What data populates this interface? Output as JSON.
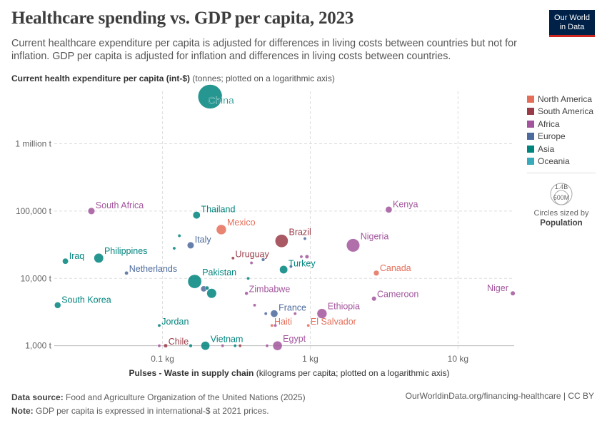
{
  "header": {
    "title": "Healthcare spending vs. GDP per capita, 2023",
    "subtitle": "Current healthcare expenditure per capita is adjusted for differences in living costs between countries but not for inflation. GDP per capita is adjusted for inflation and differences in living costs between countries.",
    "logo_line1": "Our World",
    "logo_line2": "in Data"
  },
  "axes": {
    "y_title": "Current health expenditure per capita (int-$)",
    "y_note": "(tonnes; plotted on a logarithmic axis)",
    "x_title": "Pulses - Waste in supply chain",
    "x_note": "(kilograms per capita; plotted on a logarithmic axis)"
  },
  "legend": {
    "regions": [
      {
        "name": "North America",
        "color": "#e56e5a"
      },
      {
        "name": "South America",
        "color": "#9a3c48"
      },
      {
        "name": "Africa",
        "color": "#a2559c"
      },
      {
        "name": "Europe",
        "color": "#4c6a9c"
      },
      {
        "name": "Asia",
        "color": "#00847e"
      },
      {
        "name": "Oceania",
        "color": "#38aaba"
      }
    ],
    "size_max_label": "1.4B",
    "size_min_label": "600M",
    "size_note": "Circles sized by",
    "size_variable": "Population"
  },
  "chart_data": {
    "type": "scatter",
    "x_scale": "log",
    "y_scale": "log",
    "xlim": [
      0.0185,
      24
    ],
    "ylim": [
      900,
      6000000
    ],
    "x_ticks": [
      {
        "value": 0.1,
        "label": "0.1 kg"
      },
      {
        "value": 1,
        "label": "1 kg"
      },
      {
        "value": 10,
        "label": "10 kg"
      }
    ],
    "y_ticks": [
      {
        "value": 1000,
        "label": "1,000 t"
      },
      {
        "value": 10000,
        "label": "10,000 t"
      },
      {
        "value": 100000,
        "label": "100,000 t"
      },
      {
        "value": 1000000,
        "label": "1 million t"
      }
    ],
    "points": [
      {
        "name": "China",
        "region": "Asia",
        "x": 0.21,
        "y": 5000000,
        "pop": 1400,
        "label": "China",
        "label_pos": "bottom-right"
      },
      {
        "name": "South Africa",
        "region": "Africa",
        "x": 0.033,
        "y": 100000,
        "pop": 60,
        "label": "South Africa",
        "label_pos": "right"
      },
      {
        "name": "Thailand",
        "region": "Asia",
        "x": 0.17,
        "y": 87000,
        "pop": 70,
        "label": "Thailand",
        "label_pos": "right"
      },
      {
        "name": "Mexico",
        "region": "North America",
        "x": 0.25,
        "y": 53000,
        "pop": 128,
        "label": "Mexico",
        "label_pos": "right"
      },
      {
        "name": "Italy",
        "region": "Europe",
        "x": 0.155,
        "y": 31000,
        "pop": 59,
        "label": "Italy",
        "label_pos": "right"
      },
      {
        "name": "Brazil",
        "region": "South America",
        "x": 0.64,
        "y": 36000,
        "pop": 216,
        "label": "Brazil",
        "label_pos": "right"
      },
      {
        "name": "Nigeria",
        "region": "Africa",
        "x": 1.95,
        "y": 31000,
        "pop": 223,
        "label": "Nigeria",
        "label_pos": "right"
      },
      {
        "name": "Kenya",
        "region": "Africa",
        "x": 3.4,
        "y": 105000,
        "pop": 55,
        "label": "Kenya",
        "label_pos": "right"
      },
      {
        "name": "Iraq",
        "region": "Asia",
        "x": 0.022,
        "y": 18000,
        "pop": 45,
        "label": "Iraq",
        "label_pos": "right"
      },
      {
        "name": "Philippines",
        "region": "Asia",
        "x": 0.037,
        "y": 20000,
        "pop": 117,
        "label": "Philippines",
        "label_pos": "right"
      },
      {
        "name": "Uruguay",
        "region": "South America",
        "x": 0.3,
        "y": 20000,
        "pop": 3,
        "label": "Uruguay",
        "label_pos": "right"
      },
      {
        "name": "Netherlands",
        "region": "Europe",
        "x": 0.057,
        "y": 12000,
        "pop": 18,
        "label": "Netherlands",
        "label_pos": "right"
      },
      {
        "name": "Turkey",
        "region": "Asia",
        "x": 0.66,
        "y": 13500,
        "pop": 85,
        "label": "Turkey",
        "label_pos": "right"
      },
      {
        "name": "Canada",
        "region": "North America",
        "x": 2.8,
        "y": 12000,
        "pop": 39,
        "label": "Canada",
        "label_pos": "right"
      },
      {
        "name": "Pakistan",
        "region": "Asia",
        "x": 0.165,
        "y": 9000,
        "pop": 240,
        "label": "Pakistan",
        "label_pos": "right"
      },
      {
        "name": "Zimbabwe",
        "region": "Africa",
        "x": 0.37,
        "y": 6000,
        "pop": 16,
        "label": "Zimbabwe",
        "label_pos": "right"
      },
      {
        "name": "Niger",
        "region": "Africa",
        "x": 23.5,
        "y": 6000,
        "pop": 27,
        "label": "Niger",
        "label_pos": "left"
      },
      {
        "name": "Cameroon",
        "region": "Africa",
        "x": 2.7,
        "y": 5000,
        "pop": 28,
        "label": "Cameroon",
        "label_pos": "right"
      },
      {
        "name": "South Korea",
        "region": "Asia",
        "x": 0.0195,
        "y": 4000,
        "pop": 52,
        "label": "South Korea",
        "label_pos": "right"
      },
      {
        "name": "France",
        "region": "Europe",
        "x": 0.57,
        "y": 3000,
        "pop": 68,
        "label": "France",
        "label_pos": "right"
      },
      {
        "name": "Ethiopia",
        "region": "Africa",
        "x": 1.2,
        "y": 3000,
        "pop": 126,
        "label": "Ethiopia",
        "label_pos": "right"
      },
      {
        "name": "Haiti",
        "region": "North America",
        "x": 0.55,
        "y": 2000,
        "pop": 12,
        "label": "Haiti",
        "label_pos": "right"
      },
      {
        "name": "El Salvador",
        "region": "North America",
        "x": 0.97,
        "y": 2000,
        "pop": 6,
        "label": "El Salvador",
        "label_pos": "right"
      },
      {
        "name": "Jordan",
        "region": "Asia",
        "x": 0.095,
        "y": 2000,
        "pop": 11,
        "label": "Jordan",
        "label_pos": "right"
      },
      {
        "name": "Chile",
        "region": "South America",
        "x": 0.105,
        "y": 1000,
        "pop": 20,
        "label": "Chile",
        "label_pos": "right"
      },
      {
        "name": "Vietnam",
        "region": "Asia",
        "x": 0.195,
        "y": 1000,
        "pop": 99,
        "label": "Vietnam",
        "label_pos": "right"
      },
      {
        "name": "Egypt",
        "region": "Africa",
        "x": 0.6,
        "y": 1000,
        "pop": 113,
        "label": "Egypt",
        "label_pos": "right"
      },
      {
        "name": "",
        "region": "Asia",
        "x": 0.13,
        "y": 43000,
        "pop": 10
      },
      {
        "name": "",
        "region": "Asia",
        "x": 0.12,
        "y": 28000,
        "pop": 3
      },
      {
        "name": "",
        "region": "Europe",
        "x": 0.92,
        "y": 39000,
        "pop": 8
      },
      {
        "name": "",
        "region": "Africa",
        "x": 0.95,
        "y": 21000,
        "pop": 20
      },
      {
        "name": "",
        "region": "Africa",
        "x": 0.87,
        "y": 21000,
        "pop": 8
      },
      {
        "name": "",
        "region": "Europe",
        "x": 0.48,
        "y": 19000,
        "pop": 15
      },
      {
        "name": "",
        "region": "Africa",
        "x": 0.4,
        "y": 17000,
        "pop": 10
      },
      {
        "name": "",
        "region": "Europe",
        "x": 0.74,
        "y": 15000,
        "pop": 5
      },
      {
        "name": "",
        "region": "Asia",
        "x": 0.38,
        "y": 10000,
        "pop": 6
      },
      {
        "name": "",
        "region": "Europe",
        "x": 0.19,
        "y": 7000,
        "pop": 45
      },
      {
        "name": "",
        "region": "Asia",
        "x": 0.2,
        "y": 7200,
        "pop": 20
      },
      {
        "name": "",
        "region": "Asia",
        "x": 0.215,
        "y": 6000,
        "pop": 120
      },
      {
        "name": "",
        "region": "Africa",
        "x": 0.42,
        "y": 4000,
        "pop": 4
      },
      {
        "name": "",
        "region": "Europe",
        "x": 0.5,
        "y": 3000,
        "pop": 4
      },
      {
        "name": "",
        "region": "Africa",
        "x": 0.79,
        "y": 3000,
        "pop": 6
      },
      {
        "name": "",
        "region": "Africa",
        "x": 0.58,
        "y": 2000,
        "pop": 5
      },
      {
        "name": "",
        "region": "Africa",
        "x": 0.095,
        "y": 1000,
        "pop": 6
      },
      {
        "name": "",
        "region": "Asia",
        "x": 0.155,
        "y": 1000,
        "pop": 15
      },
      {
        "name": "",
        "region": "Africa",
        "x": 0.255,
        "y": 1000,
        "pop": 4
      },
      {
        "name": "",
        "region": "Asia",
        "x": 0.31,
        "y": 1000,
        "pop": 8
      },
      {
        "name": "",
        "region": "South America",
        "x": 0.335,
        "y": 1000,
        "pop": 12
      },
      {
        "name": "",
        "region": "Africa",
        "x": 0.51,
        "y": 1000,
        "pop": 4
      }
    ]
  },
  "footer": {
    "source_label": "Data source:",
    "source_text": "Food and Agriculture Organization of the United Nations (2025)",
    "note_label": "Note:",
    "note_text": "GDP per capita is expressed in international-$ at 2021 prices.",
    "url": "OurWorldinData.org/financing-healthcare | CC BY"
  }
}
